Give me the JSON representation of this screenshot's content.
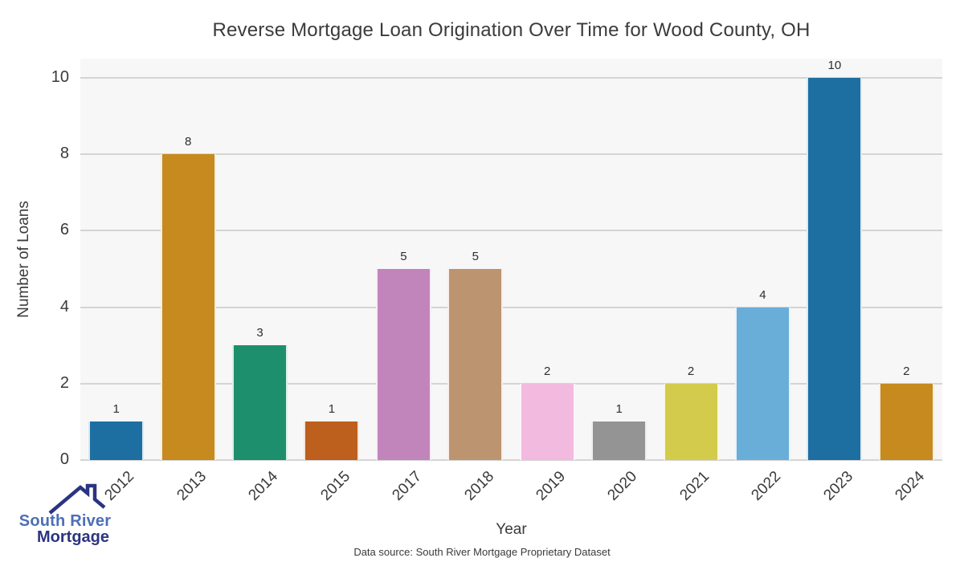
{
  "title": "Reverse Mortgage Loan Origination Over Time for Wood County, OH",
  "source_note": "Data source: South River Mortgage Proprietary Dataset",
  "logo": {
    "icon": "house-roof-icon",
    "line1": "South River",
    "line2": "Mortgage",
    "text_color_primary": "#4c6fb7",
    "text_color_secondary": "#2b3480",
    "icon_color": "#2b3480"
  },
  "chart_data": {
    "type": "bar",
    "categories": [
      "2012",
      "2013",
      "2014",
      "2015",
      "2017",
      "2018",
      "2019",
      "2020",
      "2021",
      "2022",
      "2023",
      "2024"
    ],
    "values": [
      1,
      8,
      3,
      1,
      5,
      5,
      2,
      1,
      2,
      4,
      10,
      2
    ],
    "bar_colors": [
      "#1d6fa2",
      "#c68a1e",
      "#1d8f6c",
      "#bd5f1d",
      "#c285bb",
      "#bd9470",
      "#f2bade",
      "#949494",
      "#d3cb4b",
      "#68aed8",
      "#1d6fa2",
      "#c68a1e"
    ],
    "title": "Reverse Mortgage Loan Origination Over Time for Wood County, OH",
    "xlabel": "Year",
    "ylabel": "Number of Loans",
    "ylim": [
      0,
      10
    ],
    "yticks": [
      0,
      2,
      4,
      6,
      8,
      10
    ],
    "grid": true,
    "legend": false,
    "plot_background": "#f7f7f7",
    "grid_color": "#d4d4d4",
    "value_labels_shown": true,
    "xtick_rotation_deg": 45
  }
}
